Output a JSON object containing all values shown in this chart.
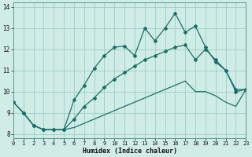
{
  "xlabel": "Humidex (Indice chaleur)",
  "ylabel": "",
  "bg_color": "#d0ece6",
  "grid_color": "#9eccc4",
  "line_color": "#1a7068",
  "xlim": [
    0,
    23
  ],
  "ylim": [
    7.8,
    14.2
  ],
  "xticks": [
    0,
    1,
    2,
    3,
    4,
    5,
    6,
    7,
    8,
    9,
    10,
    11,
    12,
    13,
    14,
    15,
    16,
    17,
    18,
    19,
    20,
    21,
    22,
    23
  ],
  "yticks": [
    8,
    9,
    10,
    11,
    12,
    13,
    14
  ],
  "series": {
    "max": [
      9.5,
      9.0,
      8.4,
      8.2,
      8.2,
      8.2,
      9.6,
      10.3,
      11.1,
      11.7,
      12.1,
      12.15,
      11.7,
      13.0,
      12.4,
      13.0,
      13.7,
      12.8,
      13.1,
      12.1,
      11.4,
      11.0,
      10.0,
      10.1
    ],
    "mean": [
      9.5,
      9.0,
      8.4,
      8.2,
      8.2,
      8.2,
      8.7,
      9.3,
      9.7,
      10.2,
      10.6,
      10.9,
      11.2,
      11.5,
      11.7,
      11.9,
      12.1,
      12.2,
      11.5,
      12.0,
      11.5,
      11.0,
      10.1,
      10.1
    ],
    "min": [
      9.5,
      9.0,
      8.4,
      8.2,
      8.2,
      8.2,
      8.3,
      8.5,
      8.7,
      8.9,
      9.1,
      9.3,
      9.5,
      9.7,
      9.9,
      10.1,
      10.3,
      10.5,
      10.0,
      10.0,
      9.8,
      9.5,
      9.3,
      10.1
    ]
  }
}
